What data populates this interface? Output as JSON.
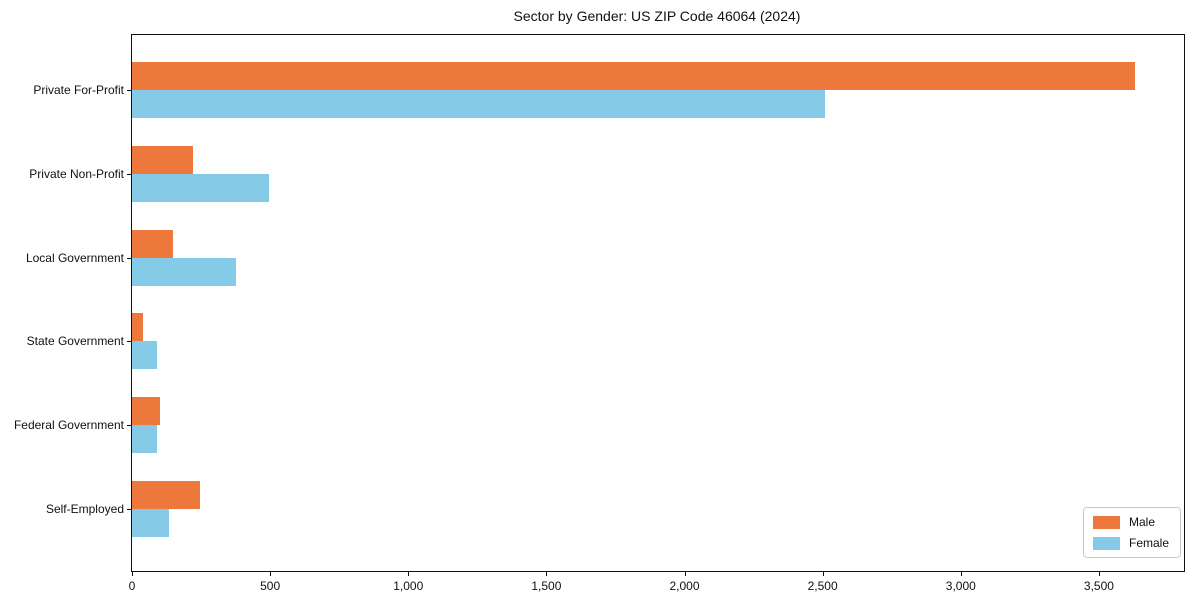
{
  "chart_data": {
    "type": "bar",
    "orientation": "horizontal",
    "title": "Sector by Gender: US ZIP Code 46064 (2024)",
    "categories": [
      "Private For-Profit",
      "Private Non-Profit",
      "Local Government",
      "State Government",
      "Federal Government",
      "Self-Employed"
    ],
    "series": [
      {
        "name": "Male",
        "color": "#ec783c",
        "values": [
          3630,
          220,
          150,
          40,
          100,
          245
        ]
      },
      {
        "name": "Female",
        "color": "#85cbe8",
        "values": [
          2510,
          495,
          375,
          90,
          90,
          135
        ]
      }
    ],
    "xlim": [
      0,
      3808
    ],
    "xticks": [
      0,
      500,
      1000,
      1500,
      2000,
      2500,
      3000,
      3500
    ],
    "xtick_labels": [
      "0",
      "500",
      "1,000",
      "1,500",
      "2,000",
      "2,500",
      "3,000",
      "3,500"
    ],
    "xlabel": "",
    "ylabel": "",
    "grid": false,
    "legend_position": "lower right",
    "colors": {
      "male": "#ec783c",
      "female": "#85cbe8",
      "axis": "#111111",
      "legend_border": "#c8c8c8",
      "background": "#ffffff"
    }
  }
}
